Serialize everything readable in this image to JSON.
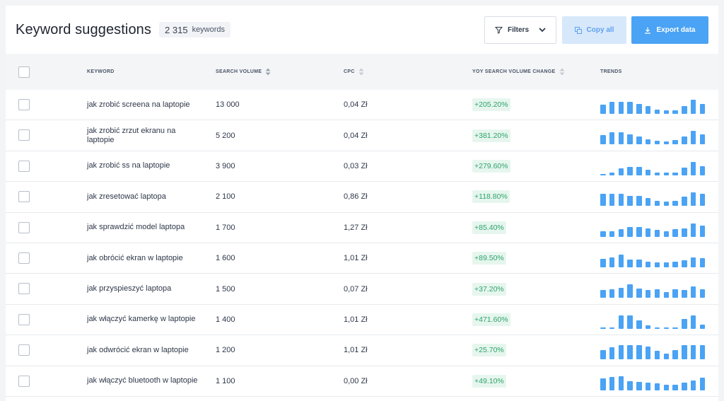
{
  "header": {
    "title": "Keyword suggestions",
    "count_value": "2 315",
    "count_unit": "keywords",
    "filters_label": "Filters",
    "copy_label": "Copy all",
    "export_label": "Export data"
  },
  "columns": {
    "keyword": "KEYWORD",
    "search_volume": "SEARCH VOLUME",
    "cpc": "CPC",
    "yoy": "YOY SEARCH VOLUME CHANGE",
    "trends": "TRENDS"
  },
  "colors": {
    "accent": "#4aa3f4",
    "positive_bg": "#e6f6ee",
    "positive_text": "#2fa36b"
  },
  "rows": [
    {
      "keyword": "jak zrobić screena na laptopie",
      "volume": "13 000",
      "cpc": "0,04 Zł",
      "yoy": "+205.20%",
      "trend": [
        0.55,
        0.7,
        0.7,
        0.7,
        0.6,
        0.45,
        0.25,
        0.2,
        0.2,
        0.45,
        0.85,
        0.6
      ]
    },
    {
      "keyword": "jak zrobić zrzut ekranu na laptopie",
      "volume": "5 200",
      "cpc": "0,04 Zł",
      "yoy": "+381.20%",
      "trend": [
        0.55,
        0.7,
        0.7,
        0.6,
        0.45,
        0.3,
        0.2,
        0.15,
        0.25,
        0.45,
        0.8,
        0.6
      ]
    },
    {
      "keyword": "jak zrobić ss na laptopie",
      "volume": "3 900",
      "cpc": "0,03 Zł",
      "yoy": "+279.60%",
      "trend": [
        0.1,
        0.15,
        0.4,
        0.5,
        0.5,
        0.35,
        0.15,
        0.15,
        0.15,
        0.45,
        0.8,
        0.55
      ]
    },
    {
      "keyword": "jak zresetować laptopa",
      "volume": "2 100",
      "cpc": "0,86 Zł",
      "yoy": "+118.80%",
      "trend": [
        0.7,
        0.7,
        0.7,
        0.6,
        0.6,
        0.45,
        0.3,
        0.25,
        0.3,
        0.55,
        0.8,
        0.7
      ]
    },
    {
      "keyword": "jak sprawdzić model laptopa",
      "volume": "1 700",
      "cpc": "1,27 Zł",
      "yoy": "+85.40%",
      "trend": [
        0.35,
        0.35,
        0.45,
        0.6,
        0.6,
        0.5,
        0.4,
        0.35,
        0.45,
        0.5,
        0.8,
        0.65
      ]
    },
    {
      "keyword": "jak obrócić ekran w laptopie",
      "volume": "1 600",
      "cpc": "1,01 Zł",
      "yoy": "+89.50%",
      "trend": [
        0.5,
        0.6,
        0.75,
        0.45,
        0.45,
        0.35,
        0.3,
        0.3,
        0.35,
        0.4,
        0.6,
        0.55
      ]
    },
    {
      "keyword": "jak przyspieszyć laptopa",
      "volume": "1 500",
      "cpc": "0,07 Zł",
      "yoy": "+37.20%",
      "trend": [
        0.45,
        0.5,
        0.6,
        0.8,
        0.55,
        0.45,
        0.5,
        0.35,
        0.5,
        0.45,
        0.65,
        0.5
      ]
    },
    {
      "keyword": "jak włączyć kamerkę w laptopie",
      "volume": "1 400",
      "cpc": "1,01 Zł",
      "yoy": "+471.60%",
      "trend": [
        0.05,
        0.1,
        0.8,
        0.8,
        0.5,
        0.2,
        0.1,
        0.1,
        0.1,
        0.6,
        0.8,
        0.25
      ]
    },
    {
      "keyword": "jak odwrócić ekran w laptopie",
      "volume": "1 200",
      "cpc": "1,01 Zł",
      "yoy": "+25.70%",
      "trend": [
        0.55,
        0.7,
        0.85,
        0.85,
        0.85,
        0.75,
        0.5,
        0.35,
        0.55,
        0.85,
        0.85,
        0.85
      ]
    },
    {
      "keyword": "jak włączyć bluetooth w laptopie",
      "volume": "1 100",
      "cpc": "0,00 Zł",
      "yoy": "+49.10%",
      "trend": [
        0.7,
        0.8,
        0.85,
        0.55,
        0.5,
        0.45,
        0.4,
        0.35,
        0.35,
        0.45,
        0.6,
        0.75
      ]
    }
  ]
}
